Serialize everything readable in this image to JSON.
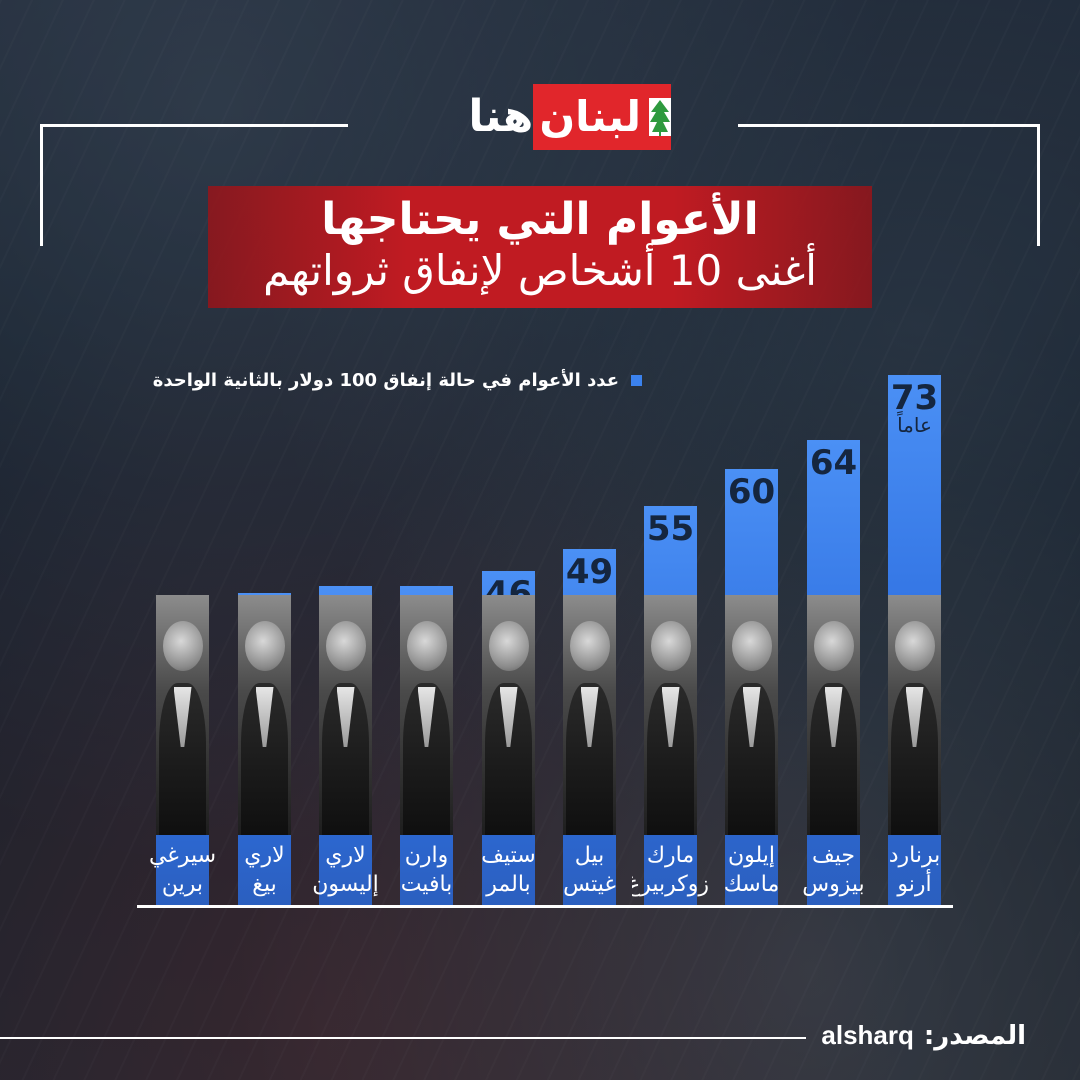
{
  "brand": {
    "logo_red_text": "لبنان",
    "logo_white_text": "هنا",
    "red": "#e1262b",
    "cedar_green": "#2e9a3e"
  },
  "header": {
    "title_line1": "الأعوام التي يحتاجها",
    "title_line2": "أغنى 10 أشخاص لإنفاق ثرواتهم",
    "background_color": "#c01b22"
  },
  "legend": {
    "text": "عدد الأعوام في حالة إنفاق 100 دولار بالثانية الواحدة",
    "marker_color": "#3b82ee"
  },
  "chart_data": {
    "type": "bar",
    "orientation": "vertical",
    "bar_color": "#3b82ee",
    "unit_label": "عاماً",
    "categories": [
      {
        "line1": "برنارد",
        "line2": "أرنو"
      },
      {
        "line1": "جيف",
        "line2": "بيزوس"
      },
      {
        "line1": "إيلون",
        "line2": "ماسك"
      },
      {
        "line1": "مارك",
        "line2": "زوكربيرغ"
      },
      {
        "line1": "بيل",
        "line2": "غيتس"
      },
      {
        "line1": "ستيف",
        "line2": "بالمر"
      },
      {
        "line1": "وارن",
        "line2": "بافيت"
      },
      {
        "line1": "لاري",
        "line2": "إليسون"
      },
      {
        "line1": "لاري",
        "line2": "بيغ"
      },
      {
        "line1": "سيرغي",
        "line2": "برين"
      }
    ],
    "values": [
      73,
      64,
      60,
      55,
      49,
      46,
      44,
      44,
      43,
      41
    ],
    "grid": false,
    "legend_placement": "top-right"
  },
  "footer": {
    "source_label": "المصدر:",
    "source_value": "alsharq"
  }
}
